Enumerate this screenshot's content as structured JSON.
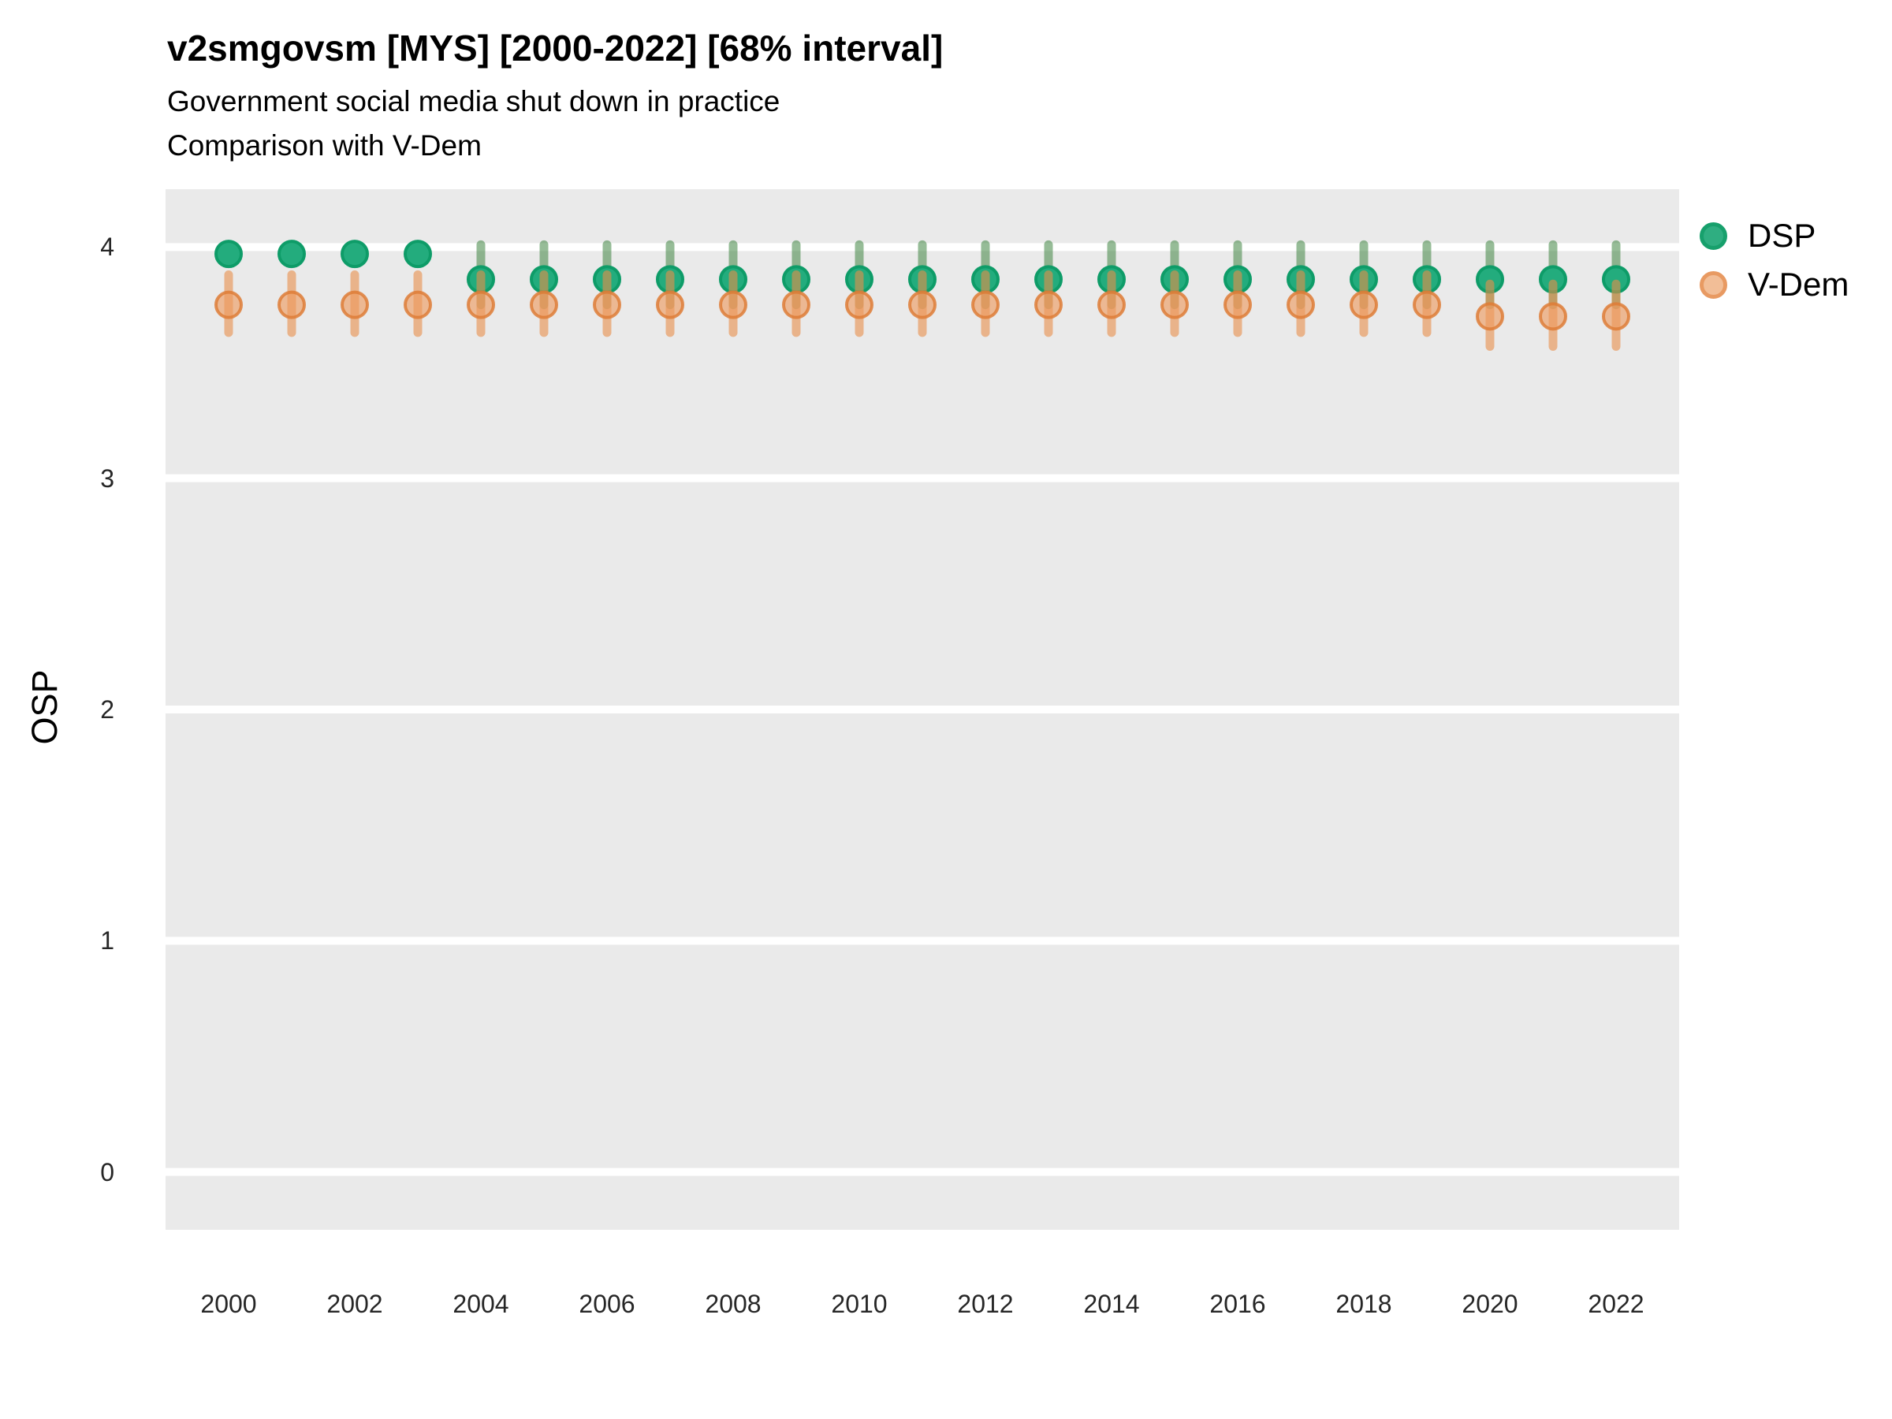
{
  "header": {
    "title": "v2smgovsm [MYS] [2000-2022] [68% interval]",
    "subtitle1": "Government social media shut down in practice",
    "subtitle2": "Comparison with V-Dem"
  },
  "axes": {
    "y_title": "OSP",
    "y_ticks": [
      0,
      1,
      2,
      3,
      4
    ],
    "x_ticks": [
      2000,
      2002,
      2004,
      2006,
      2008,
      2010,
      2012,
      2014,
      2016,
      2018,
      2020,
      2022
    ]
  },
  "legend": {
    "items": [
      {
        "label": "DSP",
        "fill": "#2FAE81",
        "ring": "#17A06C"
      },
      {
        "label": "V-Dem",
        "fill": "#F2BE97",
        "ring": "#E89A62"
      }
    ]
  },
  "colors": {
    "panel_bg": "#EAEAEA",
    "gridline": "#FFFFFF",
    "dsp_fill": "#23AC7D",
    "dsp_stroke": "#0E9C68",
    "dsp_bar": "rgba(45,122,48,0.5)",
    "vdem_fill": "rgba(238,154,94,0.62)",
    "vdem_ring": "rgba(222,124,55,0.85)",
    "vdem_bar": "rgba(232,141,74,0.6)"
  },
  "chart_data": {
    "type": "pointrange",
    "title": "v2smgovsm [MYS] [2000-2022] [68% interval]",
    "subtitle": [
      "Government social media shut down in practice",
      "Comparison with V-Dem"
    ],
    "xlabel": "",
    "ylabel": "OSP",
    "ylim": [
      -0.25,
      4.25
    ],
    "yticks": [
      0,
      1,
      2,
      3,
      4
    ],
    "xticks": [
      2000,
      2002,
      2004,
      2006,
      2008,
      2010,
      2012,
      2014,
      2016,
      2018,
      2020,
      2022
    ],
    "grid": "horizontal-only",
    "legend_position": "right",
    "interval_note": "68% interval",
    "x": [
      2000,
      2001,
      2002,
      2003,
      2004,
      2005,
      2006,
      2007,
      2008,
      2009,
      2010,
      2011,
      2012,
      2013,
      2014,
      2015,
      2016,
      2017,
      2018,
      2019,
      2020,
      2021,
      2022
    ],
    "series": [
      {
        "name": "DSP",
        "values": [
          3.97,
          3.97,
          3.97,
          3.97,
          3.86,
          3.86,
          3.86,
          3.86,
          3.86,
          3.86,
          3.86,
          3.86,
          3.86,
          3.86,
          3.86,
          3.86,
          3.86,
          3.86,
          3.86,
          3.86,
          3.86,
          3.86,
          3.86
        ],
        "lower": [
          3.93,
          3.93,
          3.93,
          3.93,
          3.75,
          3.75,
          3.75,
          3.75,
          3.75,
          3.75,
          3.75,
          3.75,
          3.75,
          3.75,
          3.75,
          3.75,
          3.75,
          3.75,
          3.75,
          3.75,
          3.75,
          3.75,
          3.75
        ],
        "upper": [
          4.0,
          4.0,
          4.0,
          4.0,
          4.01,
          4.01,
          4.01,
          4.01,
          4.01,
          4.01,
          4.01,
          4.01,
          4.01,
          4.01,
          4.01,
          4.01,
          4.01,
          4.01,
          4.01,
          4.01,
          4.01,
          4.01,
          4.01
        ]
      },
      {
        "name": "V-Dem",
        "values": [
          3.75,
          3.75,
          3.75,
          3.75,
          3.75,
          3.75,
          3.75,
          3.75,
          3.75,
          3.75,
          3.75,
          3.75,
          3.75,
          3.75,
          3.75,
          3.75,
          3.75,
          3.75,
          3.75,
          3.75,
          3.7,
          3.7,
          3.7
        ],
        "lower": [
          3.63,
          3.63,
          3.63,
          3.63,
          3.63,
          3.63,
          3.63,
          3.63,
          3.63,
          3.63,
          3.63,
          3.63,
          3.63,
          3.63,
          3.63,
          3.63,
          3.63,
          3.63,
          3.63,
          3.63,
          3.57,
          3.57,
          3.57
        ],
        "upper": [
          3.88,
          3.88,
          3.88,
          3.88,
          3.88,
          3.88,
          3.88,
          3.88,
          3.88,
          3.88,
          3.88,
          3.88,
          3.88,
          3.88,
          3.88,
          3.88,
          3.88,
          3.88,
          3.88,
          3.88,
          3.84,
          3.84,
          3.84
        ]
      }
    ]
  }
}
